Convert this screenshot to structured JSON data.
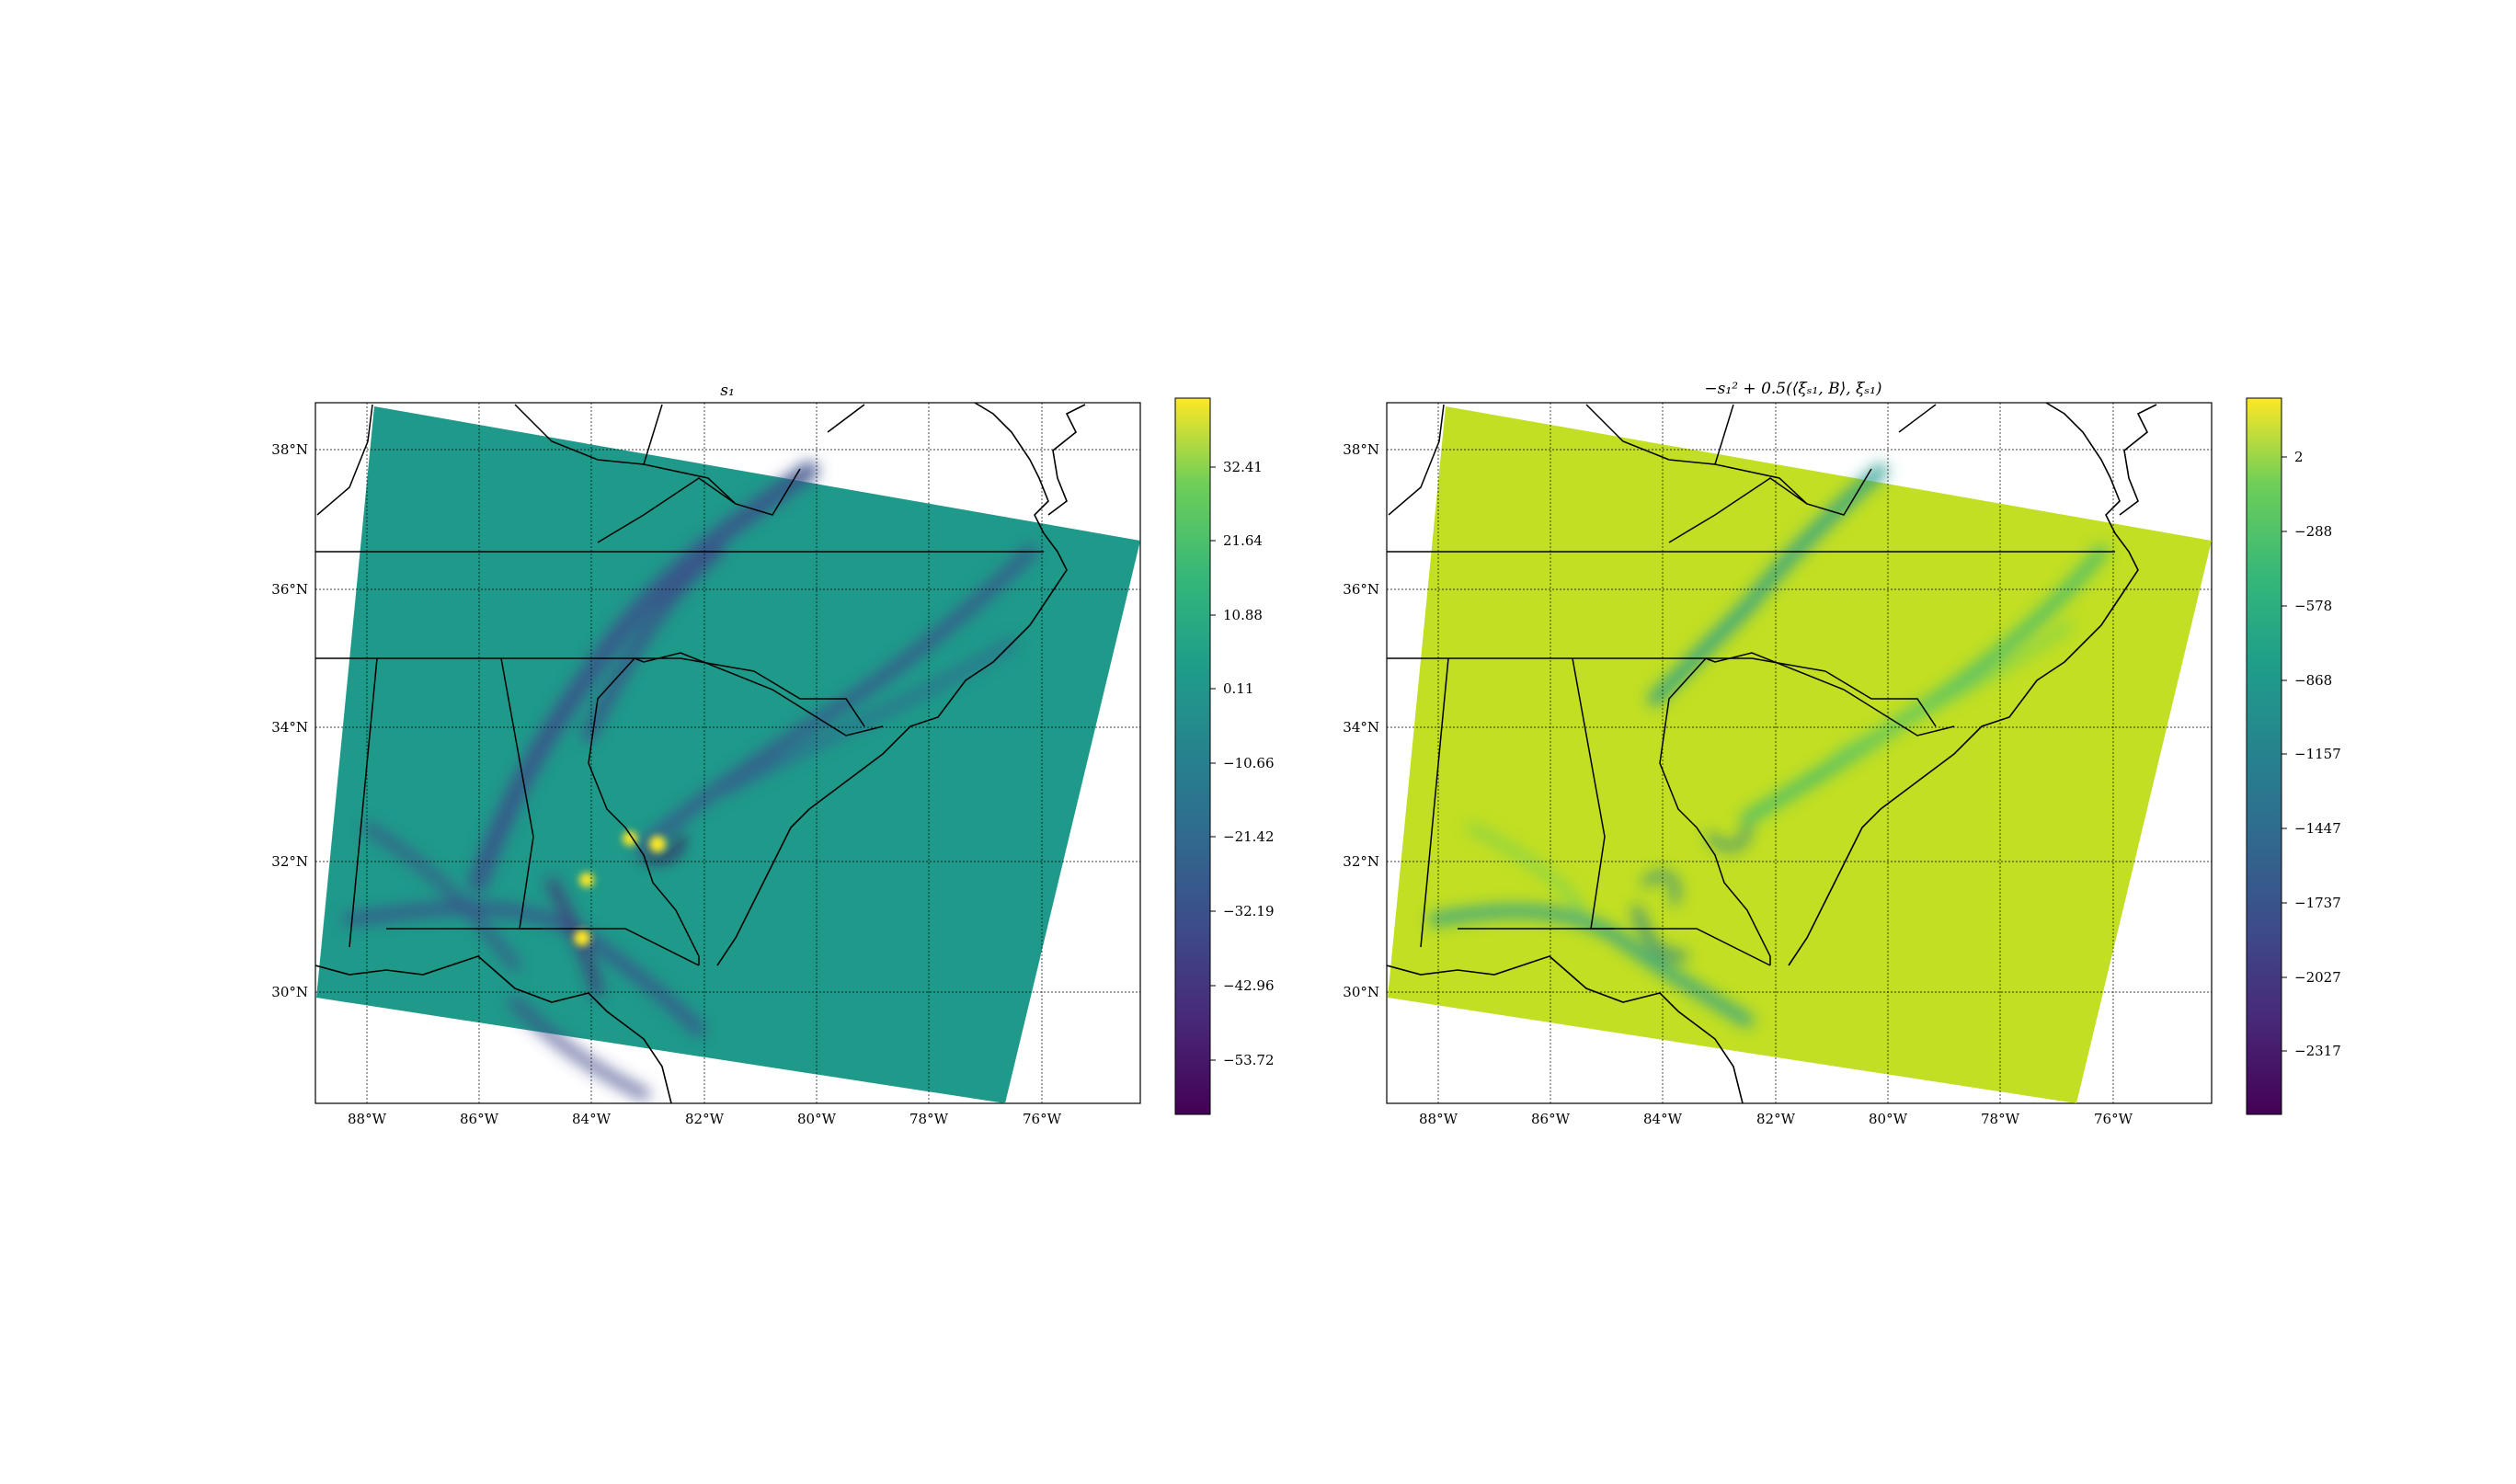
{
  "panels": [
    {
      "title": "s₁",
      "lon_labels": [
        "88°W",
        "86°W",
        "84°W",
        "82°W",
        "80°W",
        "78°W",
        "76°W"
      ],
      "lat_labels": [
        "38°N",
        "36°N",
        "34°N",
        "32°N",
        "30°N"
      ],
      "colorbar_ticks": [
        "32.41",
        "21.64",
        "10.88",
        "0.11",
        "−10.66",
        "−21.42",
        "−32.19",
        "−42.96",
        "−53.72"
      ],
      "colors": {
        "background": "#1f9a8a",
        "band": "#3b528b",
        "hot": "#fde725"
      }
    },
    {
      "title": "−s₁² + 0.5(⟨ξₛ₁, B⟩, ξₛ₁)",
      "lon_labels": [
        "88°W",
        "86°W",
        "84°W",
        "82°W",
        "80°W",
        "78°W",
        "76°W"
      ],
      "lat_labels": [
        "38°N",
        "36°N",
        "34°N",
        "32°N",
        "30°N"
      ],
      "colorbar_ticks": [
        "2",
        "−288",
        "−578",
        "−868",
        "−1157",
        "−1447",
        "−1737",
        "−2027",
        "−2317"
      ],
      "colors": {
        "background": "#c2df23",
        "band": "#2a9d8f",
        "hot": "#fde725"
      }
    }
  ],
  "colormap": "viridis"
}
